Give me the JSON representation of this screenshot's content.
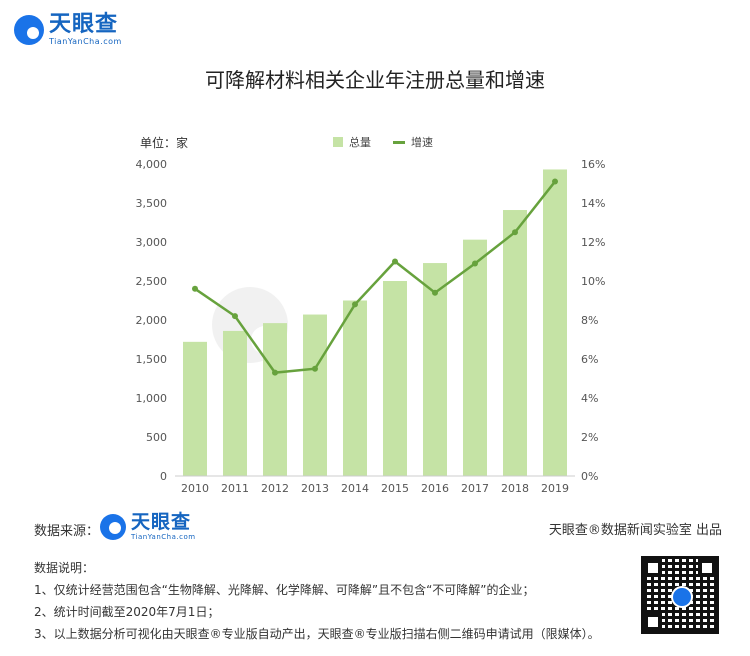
{
  "header": {
    "logo_name": "天眼查",
    "logo_sub": "TianYanCha.com"
  },
  "chart_data": {
    "type": "bar",
    "title": "可降解材料相关企业年注册总量和增速",
    "unit_label": "单位：家",
    "categories": [
      "2010",
      "2011",
      "2012",
      "2013",
      "2014",
      "2015",
      "2016",
      "2017",
      "2018",
      "2019"
    ],
    "series": [
      {
        "name": "总量",
        "type": "bar",
        "axis": "left",
        "color": "#c5e3a5",
        "values": [
          1720,
          1860,
          1960,
          2070,
          2250,
          2500,
          2730,
          3030,
          3410,
          3930
        ]
      },
      {
        "name": "增速",
        "type": "line",
        "axis": "right",
        "color": "#67a23d",
        "values": [
          9.6,
          8.2,
          5.3,
          5.5,
          8.8,
          11.0,
          9.4,
          10.9,
          12.5,
          15.1
        ]
      }
    ],
    "left_axis": {
      "ylim": [
        0,
        4000
      ],
      "ticks": [
        "0",
        "500",
        "1,000",
        "1,500",
        "2,000",
        "2,500",
        "3,000",
        "3,500",
        "4,000"
      ]
    },
    "right_axis": {
      "ylim": [
        0,
        16
      ],
      "ticks": [
        "0%",
        "2%",
        "4%",
        "6%",
        "8%",
        "10%",
        "12%",
        "14%",
        "16%"
      ]
    },
    "legend_position": "top-center",
    "grid": false
  },
  "footer": {
    "source_label": "数据来源：",
    "source_logo_name": "天眼查",
    "source_logo_sub": "TianYanCha.com",
    "lab_label": "天眼查®数据新闻实验室 出品",
    "notes_title": "数据说明：",
    "notes": [
      "1、仅统计经营范围包含“生物降解、光降解、化学降解、可降解”且不包含“不可降解”的企业；",
      "2、统计时间截至2020年7月1日；",
      "3、以上数据分析可视化由天眼查®专业版自动产出，天眼查®专业版扫描右侧二维码申请试用（限媒体）。"
    ]
  }
}
